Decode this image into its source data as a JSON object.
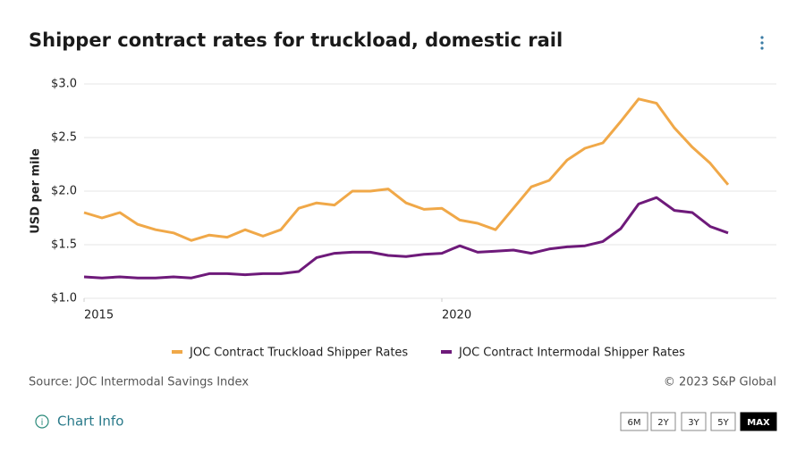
{
  "chart_data": {
    "type": "line",
    "title": "Shipper contract rates for truckload, domestic rail",
    "y_label": "USD per mile",
    "x": [
      2015,
      2015.25,
      2015.5,
      2015.75,
      2016,
      2016.25,
      2016.5,
      2016.75,
      2017,
      2017.25,
      2017.5,
      2017.75,
      2018,
      2018.25,
      2018.5,
      2018.75,
      2019,
      2019.25,
      2019.5,
      2019.75,
      2020,
      2020.25,
      2020.5,
      2020.75,
      2021,
      2021.25,
      2021.5,
      2021.75,
      2022,
      2022.25,
      2022.5,
      2022.75,
      2023,
      2023.25,
      2023.5,
      2023.75,
      2024
    ],
    "series": [
      {
        "name": "JOC Contract Truckload Shipper Rates",
        "color": "#f0a848",
        "values": [
          1.8,
          1.75,
          1.8,
          1.69,
          1.64,
          1.61,
          1.54,
          1.59,
          1.57,
          1.64,
          1.58,
          1.64,
          1.84,
          1.89,
          1.87,
          2.0,
          2.0,
          2.02,
          1.89,
          1.83,
          1.84,
          1.73,
          1.7,
          1.64,
          1.84,
          2.04,
          2.1,
          2.29,
          2.4,
          2.45,
          2.65,
          2.86,
          2.82,
          2.59,
          2.41,
          2.26,
          2.06
        ]
      },
      {
        "name": "JOC Contract Intermodal Shipper Rates",
        "color": "#6e1a7a",
        "values": [
          1.2,
          1.19,
          1.2,
          1.19,
          1.19,
          1.2,
          1.19,
          1.23,
          1.23,
          1.22,
          1.23,
          1.23,
          1.25,
          1.38,
          1.42,
          1.43,
          1.43,
          1.4,
          1.39,
          1.41,
          1.42,
          1.49,
          1.43,
          1.44,
          1.45,
          1.42,
          1.46,
          1.48,
          1.49,
          1.53,
          1.65,
          1.88,
          1.94,
          1.82,
          1.8,
          1.67,
          1.61
        ]
      }
    ],
    "xlim": [
      2015,
      2024.675
    ],
    "xticks": [
      2015,
      2020
    ],
    "ylim": [
      1.0,
      3.0
    ],
    "yticks": [
      {
        "value": 1.0,
        "label": "$1.0"
      },
      {
        "value": 1.5,
        "label": "$1.5"
      },
      {
        "value": 2.0,
        "label": "$2.0"
      },
      {
        "value": 2.5,
        "label": "$2.5"
      },
      {
        "value": 3.0,
        "label": "$3.0"
      }
    ],
    "grid": true,
    "legend": "bottom",
    "source": "Source: JOC Intermodal Savings Index",
    "copyright": "© 2023 S&P Global",
    "chart_info": "Chart Info",
    "ranges": [
      "6M",
      "2Y",
      "3Y",
      "5Y",
      "MAX"
    ],
    "active_range": 4
  }
}
